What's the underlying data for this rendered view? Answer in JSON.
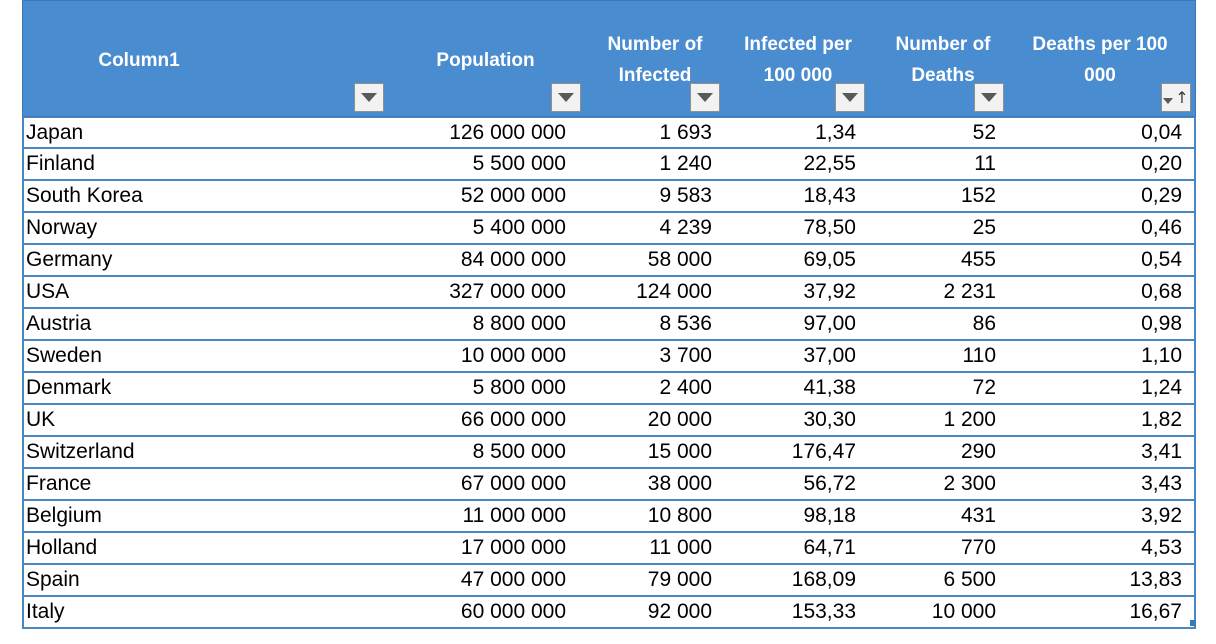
{
  "table": {
    "columns": [
      {
        "key": "country",
        "title": "Column1",
        "filter": "dropdown"
      },
      {
        "key": "population",
        "title": "Population",
        "filter": "dropdown"
      },
      {
        "key": "infected",
        "title": "Number of\nInfected",
        "filter": "dropdown"
      },
      {
        "key": "infected_per_100k",
        "title": "Infected per\n100 000",
        "filter": "dropdown"
      },
      {
        "key": "deaths",
        "title": "Number of\nDeaths",
        "filter": "dropdown"
      },
      {
        "key": "deaths_per_100k",
        "title": "Deaths per 100\n000",
        "filter": "sorted-ascending"
      }
    ],
    "rows": [
      {
        "country": "Japan",
        "population": "126 000 000",
        "infected": "1 693",
        "infected_per_100k": "1,34",
        "deaths": "52",
        "deaths_per_100k": "0,04"
      },
      {
        "country": "Finland",
        "population": "5 500 000",
        "infected": "1 240",
        "infected_per_100k": "22,55",
        "deaths": "11",
        "deaths_per_100k": "0,20"
      },
      {
        "country": "South Korea",
        "population": "52 000 000",
        "infected": "9 583",
        "infected_per_100k": "18,43",
        "deaths": "152",
        "deaths_per_100k": "0,29"
      },
      {
        "country": "Norway",
        "population": "5 400 000",
        "infected": "4 239",
        "infected_per_100k": "78,50",
        "deaths": "25",
        "deaths_per_100k": "0,46"
      },
      {
        "country": "Germany",
        "population": "84 000 000",
        "infected": "58 000",
        "infected_per_100k": "69,05",
        "deaths": "455",
        "deaths_per_100k": "0,54"
      },
      {
        "country": "USA",
        "population": "327 000 000",
        "infected": "124 000",
        "infected_per_100k": "37,92",
        "deaths": "2 231",
        "deaths_per_100k": "0,68"
      },
      {
        "country": "Austria",
        "population": "8 800 000",
        "infected": "8 536",
        "infected_per_100k": "97,00",
        "deaths": "86",
        "deaths_per_100k": "0,98"
      },
      {
        "country": "Sweden",
        "population": "10 000 000",
        "infected": "3 700",
        "infected_per_100k": "37,00",
        "deaths": "110",
        "deaths_per_100k": "1,10"
      },
      {
        "country": "Denmark",
        "population": "5 800 000",
        "infected": "2 400",
        "infected_per_100k": "41,38",
        "deaths": "72",
        "deaths_per_100k": "1,24"
      },
      {
        "country": "UK",
        "population": "66 000 000",
        "infected": "20 000",
        "infected_per_100k": "30,30",
        "deaths": "1 200",
        "deaths_per_100k": "1,82"
      },
      {
        "country": "Switzerland",
        "population": "8 500 000",
        "infected": "15 000",
        "infected_per_100k": "176,47",
        "deaths": "290",
        "deaths_per_100k": "3,41"
      },
      {
        "country": "France",
        "population": "67 000 000",
        "infected": "38 000",
        "infected_per_100k": "56,72",
        "deaths": "2 300",
        "deaths_per_100k": "3,43"
      },
      {
        "country": "Belgium",
        "population": "11 000 000",
        "infected": "10 800",
        "infected_per_100k": "98,18",
        "deaths": "431",
        "deaths_per_100k": "3,92"
      },
      {
        "country": "Holland",
        "population": "17 000 000",
        "infected": "11 000",
        "infected_per_100k": "64,71",
        "deaths": "770",
        "deaths_per_100k": "4,53"
      },
      {
        "country": "Spain",
        "population": "47 000 000",
        "infected": "79 000",
        "infected_per_100k": "168,09",
        "deaths": "6 500",
        "deaths_per_100k": "13,83"
      },
      {
        "country": "Italy",
        "population": "60 000 000",
        "infected": "92 000",
        "infected_per_100k": "153,33",
        "deaths": "10 000",
        "deaths_per_100k": "16,67"
      }
    ]
  },
  "colors": {
    "header_bg": "#4a8cd0",
    "header_text": "#ffffff",
    "row_border": "#4a86c0"
  },
  "icons": {
    "filter": "chevron-down-icon",
    "sorted": "sort-ascending-icon"
  }
}
